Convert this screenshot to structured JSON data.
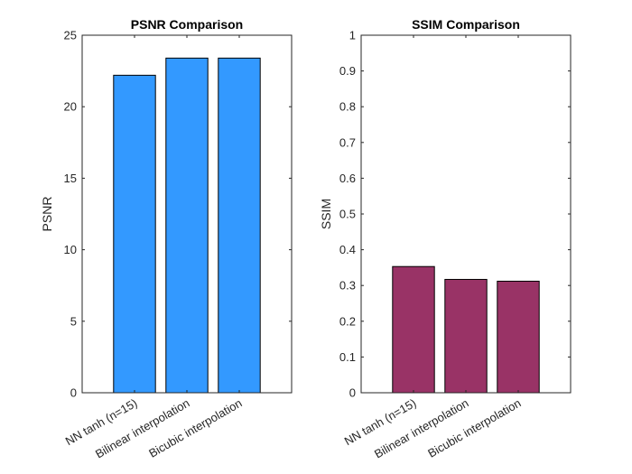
{
  "chart_data": [
    {
      "type": "bar",
      "title": "PSNR Comparison",
      "xlabel": "",
      "ylabel": "PSNR",
      "categories": [
        "NN tanh (n=15)",
        "Bilinear interpolation",
        "Bicubic interpolation"
      ],
      "values": [
        22.2,
        23.4,
        23.4
      ],
      "ylim": [
        0,
        25
      ],
      "yticks": [
        0,
        5,
        10,
        15,
        20,
        25
      ],
      "ytick_labels": [
        "0",
        "5",
        "10",
        "15",
        "20",
        "25"
      ],
      "bar_color": "#3399ff",
      "grid": false
    },
    {
      "type": "bar",
      "title": "SSIM Comparison",
      "xlabel": "",
      "ylabel": "SSIM",
      "categories": [
        "NN tanh (n=15)",
        "Bilinear interpolation",
        "Bicubic interpolation"
      ],
      "values": [
        0.353,
        0.317,
        0.312
      ],
      "ylim": [
        0,
        1
      ],
      "yticks": [
        0,
        0.1,
        0.2,
        0.3,
        0.4,
        0.5,
        0.6,
        0.7,
        0.8,
        0.9,
        1
      ],
      "ytick_labels": [
        "0",
        "0.1",
        "0.2",
        "0.3",
        "0.4",
        "0.5",
        "0.6",
        "0.7",
        "0.8",
        "0.9",
        "1"
      ],
      "bar_color": "#993366",
      "grid": false
    }
  ]
}
